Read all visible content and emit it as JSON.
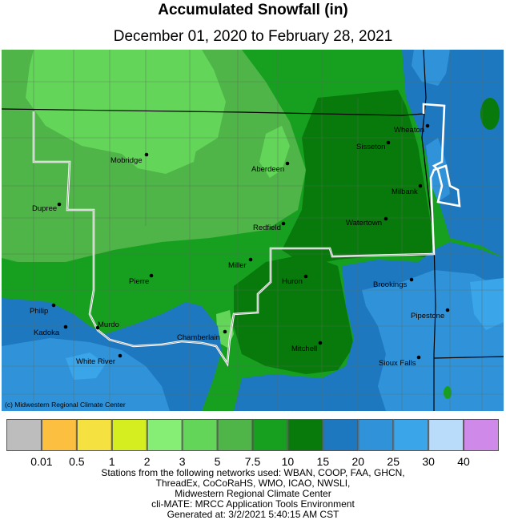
{
  "title": "Accumulated Snowfall (in)",
  "subtitle": "December 01, 2020 to February 28, 2021",
  "copyright": "(c) Midwestern Regional Climate Center",
  "legend": {
    "colors": [
      "#bdbdbd",
      "#fdbf3f",
      "#f5e13f",
      "#d4ee20",
      "#86ee74",
      "#63d659",
      "#4fb548",
      "#17a020",
      "#087a0b",
      "#1e78c0",
      "#3093da",
      "#3ba5ea",
      "#b9dcfb",
      "#cf8ae9"
    ],
    "ticks": [
      "0.01",
      "0.5",
      "1",
      "2",
      "3",
      "5",
      "7.5",
      "10",
      "15",
      "20",
      "25",
      "30",
      "40"
    ]
  },
  "cities": [
    {
      "name": "Wheaton"
    },
    {
      "name": "Sisseton"
    },
    {
      "name": "Mobridge"
    },
    {
      "name": "Aberdeen"
    },
    {
      "name": "Milbank"
    },
    {
      "name": "Dupree"
    },
    {
      "name": "Watertown"
    },
    {
      "name": "Redfield"
    },
    {
      "name": "Miller"
    },
    {
      "name": "Huron"
    },
    {
      "name": "Pierre"
    },
    {
      "name": "Brookings"
    },
    {
      "name": "Philip"
    },
    {
      "name": "Pipestone"
    },
    {
      "name": "Kadoka"
    },
    {
      "name": "Murdo"
    },
    {
      "name": "Chamberlain"
    },
    {
      "name": "Mitchell"
    },
    {
      "name": "White River"
    },
    {
      "name": "Sioux Falls"
    }
  ],
  "credits": [
    "Stations from the following networks used: WBAN, COOP, FAA, GHCN,",
    "ThreadEx, CoCoRaHS, WMO, ICAO, NWSLI,",
    "Midwestern Regional Climate Center",
    "cli-MATE: MRCC Application Tools Environment",
    "Generated at: 3/2/2021 5:40:15 AM CST"
  ]
}
